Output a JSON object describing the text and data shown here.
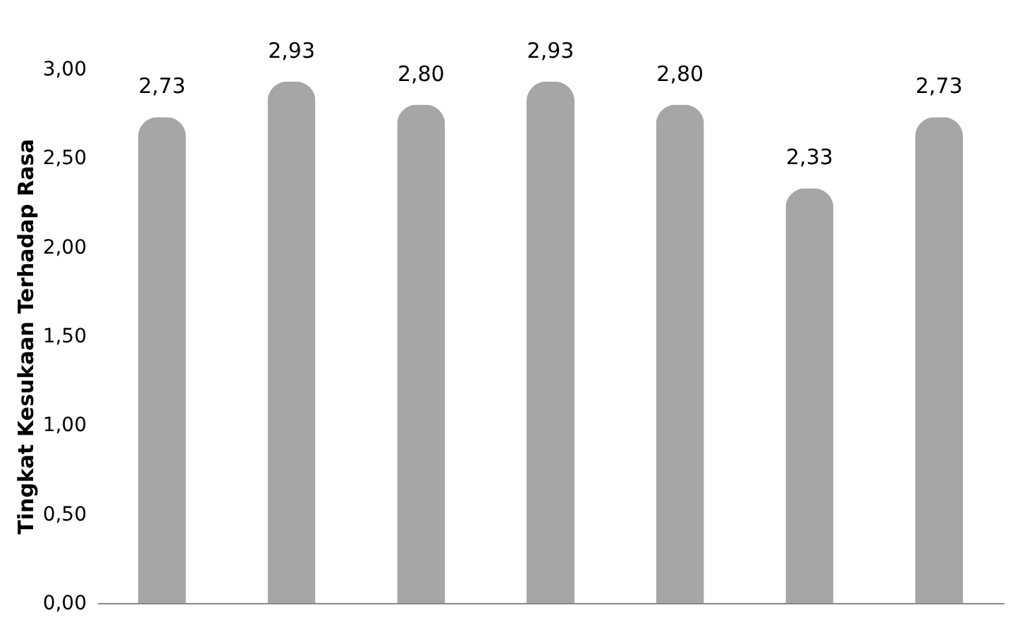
{
  "chart_data": {
    "type": "bar",
    "ylabel": "Tingkat Kesukaan Terhadap Rasa",
    "categories": [
      null,
      null,
      null,
      null,
      null,
      null,
      null
    ],
    "values": [
      2.73,
      2.93,
      2.8,
      2.93,
      2.8,
      2.33,
      2.73
    ],
    "value_labels": [
      "2,73",
      "2,93",
      "2,80",
      "2,93",
      "2,80",
      "2,33",
      "2,73"
    ],
    "color": "#a6a6a6",
    "ylim": [
      0,
      3
    ],
    "yticks": [
      {
        "value": 0,
        "label": "0,00"
      },
      {
        "value": 0.5,
        "label": "0,50"
      },
      {
        "value": 1,
        "label": "1,00"
      },
      {
        "value": 1.5,
        "label": "1,50"
      },
      {
        "value": 2,
        "label": "2,00"
      },
      {
        "value": 2.5,
        "label": "2,50"
      },
      {
        "value": 3,
        "label": "3,00"
      }
    ],
    "grid": false
  }
}
